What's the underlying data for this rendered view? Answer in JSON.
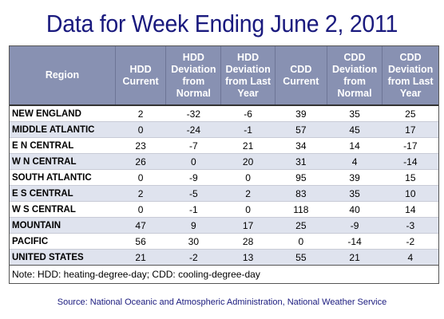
{
  "title": "Data for Week Ending June 2, 2011",
  "headers": [
    "Region",
    "HDD Current",
    "HDD Deviation from Normal",
    "HDD Deviation from Last Year",
    "CDD Current",
    "CDD Deviation from Normal",
    "CDD Deviation from Last Year"
  ],
  "rows": [
    [
      "NEW ENGLAND",
      "2",
      "-32",
      "-6",
      "39",
      "35",
      "25"
    ],
    [
      "MIDDLE ATLANTIC",
      "0",
      "-24",
      "-1",
      "57",
      "45",
      "17"
    ],
    [
      "E N CENTRAL",
      "23",
      "-7",
      "21",
      "34",
      "14",
      "-17"
    ],
    [
      "W N CENTRAL",
      "26",
      "0",
      "20",
      "31",
      "4",
      "-14"
    ],
    [
      "SOUTH ATLANTIC",
      "0",
      "-9",
      "0",
      "95",
      "39",
      "15"
    ],
    [
      "E S CENTRAL",
      "2",
      "-5",
      "2",
      "83",
      "35",
      "10"
    ],
    [
      "W S CENTRAL",
      "0",
      "-1",
      "0",
      "118",
      "40",
      "14"
    ],
    [
      "MOUNTAIN",
      "47",
      "9",
      "17",
      "25",
      "-9",
      "-3"
    ],
    [
      "PACIFIC",
      "56",
      "30",
      "28",
      "0",
      "-14",
      "-2"
    ],
    [
      "UNITED STATES",
      "21",
      "-2",
      "13",
      "55",
      "21",
      "4"
    ]
  ],
  "note": "Note: HDD: heating-degree-day; CDD: cooling-degree-day",
  "source": "Source:  National Oceanic and Atmospheric Administration, National Weather Service",
  "colors": {
    "title": "#1a1a7e",
    "header_bg": "#8891b2",
    "stripe": "#dfe3ee"
  }
}
